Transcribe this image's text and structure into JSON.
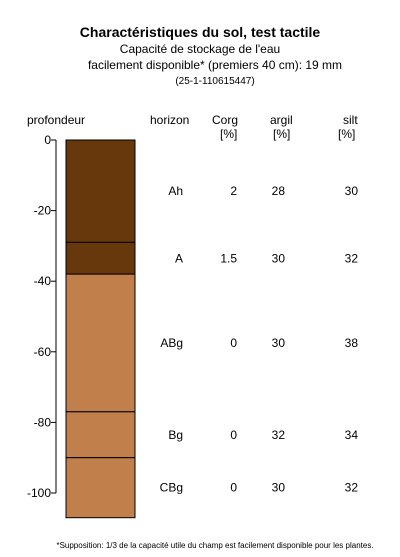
{
  "chart_data": {
    "type": "table",
    "title": "Charactéristiques du sol, test tactile",
    "subtitle_line1": "Capacité de stockage de l'eau",
    "subtitle_line2": "facilement disponible* (premiers 40 cm): 19 mm",
    "sample_id": "(25-1-110615447)",
    "ylabel": "profondeur",
    "ylim": [
      -107,
      0
    ],
    "y_ticks": [
      0,
      -20,
      -40,
      -60,
      -80,
      -100
    ],
    "columns": {
      "horizon": {
        "label": "horizon",
        "unit": ""
      },
      "corg": {
        "label": "Corg",
        "unit": "[%]"
      },
      "argil": {
        "label": "argil",
        "unit": "[%]"
      },
      "silt": {
        "label": "silt",
        "unit": "[%]"
      }
    },
    "horizons": [
      {
        "name": "Ah",
        "top": 0,
        "bottom": -29,
        "corg": "2",
        "argil": "28",
        "silt": "30",
        "color": "#67380c"
      },
      {
        "name": "A",
        "top": -29,
        "bottom": -38,
        "corg": "1.5",
        "argil": "30",
        "silt": "32",
        "color": "#67380c"
      },
      {
        "name": "ABg",
        "top": -38,
        "bottom": -77,
        "corg": "0",
        "argil": "30",
        "silt": "38",
        "color": "#c07f4b"
      },
      {
        "name": "Bg",
        "top": -77,
        "bottom": -90,
        "corg": "0",
        "argil": "32",
        "silt": "34",
        "color": "#c07f4b"
      },
      {
        "name": "CBg",
        "top": -90,
        "bottom": -107,
        "corg": "0",
        "argil": "30",
        "silt": "32",
        "color": "#c07f4b"
      }
    ]
  },
  "footnote": "*Supposition: 1/3 de la capacité utile du champ est facilement disponible pour les plantes."
}
